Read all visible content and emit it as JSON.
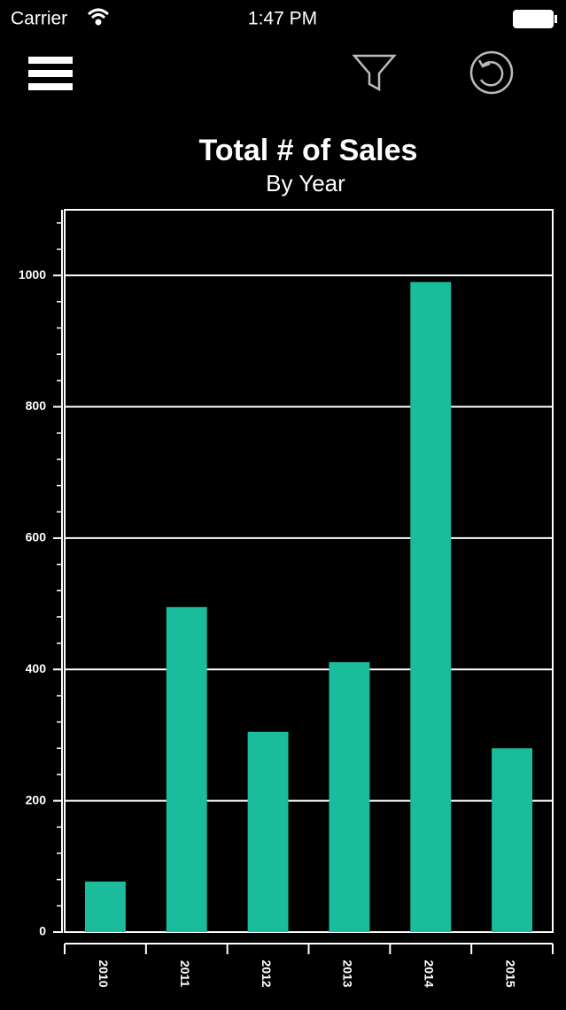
{
  "status_bar": {
    "carrier": "Carrier",
    "time": "1:47 PM"
  },
  "chart_data": {
    "type": "bar",
    "title": "Total # of Sales",
    "subtitle": "By Year",
    "categories": [
      "2010",
      "2011",
      "2012",
      "2013",
      "2014",
      "2015"
    ],
    "values": [
      77,
      495,
      305,
      411,
      990,
      280
    ],
    "color": "#1abc9c",
    "ylim": [
      0,
      1100
    ],
    "yticks": [
      0,
      200,
      400,
      600,
      800,
      1000
    ],
    "minor_yticks": [
      40,
      80,
      120,
      160,
      240,
      280,
      320,
      360,
      440,
      480,
      520,
      560,
      640,
      680,
      720,
      760,
      840,
      880,
      920,
      960,
      1040,
      1080
    ],
    "grid": true
  }
}
